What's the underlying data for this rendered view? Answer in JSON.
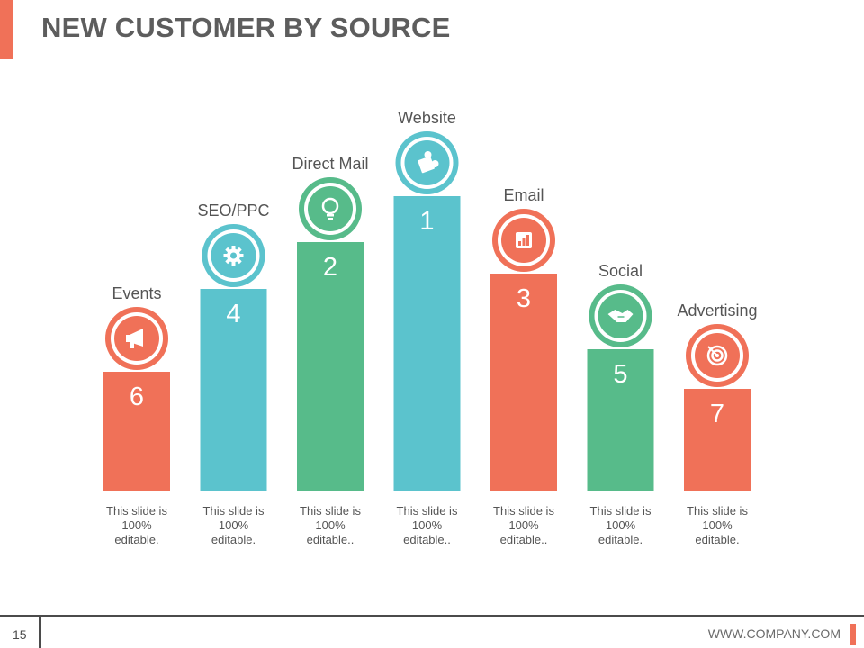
{
  "slide": {
    "title": "NEW CUSTOMER BY SOURCE",
    "page_number": "15",
    "company_url": "WWW.COMPANY.COM"
  },
  "colors": {
    "coral": "#f07158",
    "teal": "#5bc3cd",
    "green": "#57bb8a",
    "text": "#555555"
  },
  "chart_data": {
    "type": "bar",
    "title": "NEW CUSTOMER BY SOURCE",
    "categories": [
      "Events",
      "SEO/PPC",
      "Direct Mail",
      "Website",
      "Email",
      "Social",
      "Advertising"
    ],
    "ranks": [
      "6",
      "4",
      "2",
      "1",
      "3",
      "5",
      "7"
    ],
    "values": [
      133,
      225,
      277,
      328,
      242,
      158,
      114
    ],
    "ylim": [
      0,
      340
    ],
    "colors": [
      "#f07158",
      "#5bc3cd",
      "#57bb8a",
      "#5bc3cd",
      "#f07158",
      "#57bb8a",
      "#f07158"
    ],
    "icons": [
      "megaphone-icon",
      "gear-icon",
      "lightbulb-icon",
      "puzzle-icon",
      "bar-chart-icon",
      "handshake-icon",
      "target-icon"
    ],
    "descriptions": [
      [
        "This slide is",
        "100%",
        "editable."
      ],
      [
        "This slide is",
        "100%",
        "editable."
      ],
      [
        "This slide is",
        "100%",
        "editable.."
      ],
      [
        "This slide is",
        "100%",
        "editable.."
      ],
      [
        "This slide is",
        "100%",
        "editable.."
      ],
      [
        "This slide is",
        "100%",
        "editable."
      ],
      [
        "This slide is",
        "100%",
        "editable."
      ]
    ],
    "xlabel": "",
    "ylabel": ""
  }
}
